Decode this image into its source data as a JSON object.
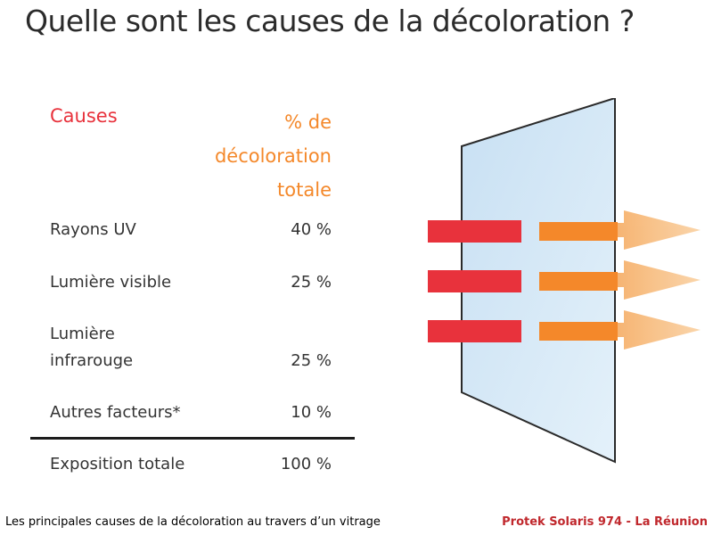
{
  "title": "Quelle sont les causes de la décoloration ?",
  "table": {
    "header_causes": "Causes",
    "header_percent_lines": [
      "% de",
      "décoloration",
      "totale"
    ],
    "rows": [
      {
        "label_lines": [
          "Rayons UV"
        ],
        "value": "40 %"
      },
      {
        "label_lines": [
          "Lumière visible"
        ],
        "value": "25 %"
      },
      {
        "label_lines": [
          "Lumière",
          "infrarouge"
        ],
        "value": "25 %"
      },
      {
        "label_lines": [
          "Autres facteurs*"
        ],
        "value": "10 %"
      }
    ],
    "total": {
      "label": "Exposition totale",
      "value": "100 %"
    }
  },
  "footer": {
    "caption": "Les principales causes de la décoloration au travers d’un vitrage",
    "credit": "Protek Solaris 974 - La Réunion"
  },
  "colors": {
    "cause_red": "#e8323c",
    "percent_orange": "#f4882a",
    "glass_blue": "#cfe5f5"
  }
}
